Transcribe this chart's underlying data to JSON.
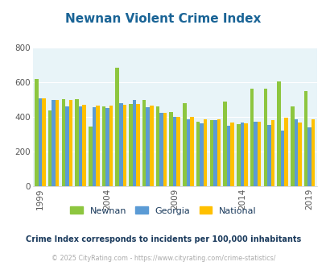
{
  "title": "Newnan Violent Crime Index",
  "title_color": "#1a6496",
  "years": [
    1999,
    2000,
    2001,
    2002,
    2003,
    2004,
    2005,
    2006,
    2007,
    2008,
    2009,
    2010,
    2011,
    2012,
    2013,
    2014,
    2015,
    2016,
    2017,
    2018,
    2019,
    2020
  ],
  "newnan": [
    618,
    440,
    505,
    505,
    345,
    460,
    685,
    475,
    500,
    460,
    430,
    480,
    375,
    380,
    490,
    360,
    565,
    565,
    605,
    460,
    550,
    null
  ],
  "georgia": [
    510,
    500,
    460,
    460,
    455,
    450,
    480,
    500,
    455,
    425,
    400,
    385,
    365,
    380,
    350,
    370,
    375,
    355,
    320,
    385,
    340,
    null
  ],
  "national": [
    510,
    500,
    500,
    470,
    465,
    465,
    470,
    475,
    465,
    425,
    400,
    400,
    387,
    387,
    367,
    365,
    373,
    383,
    395,
    370,
    387,
    null
  ],
  "newnan_color": "#8dc63f",
  "georgia_color": "#5b9bd5",
  "national_color": "#ffc000",
  "bg_color": "#e8f4f8",
  "ylim": [
    0,
    800
  ],
  "yticks": [
    0,
    200,
    400,
    600,
    800
  ],
  "xlabel_years": [
    1999,
    2004,
    2009,
    2014,
    2019
  ],
  "footnote1": "Crime Index corresponds to incidents per 100,000 inhabitants",
  "footnote2": "© 2025 CityRating.com - https://www.cityrating.com/crime-statistics/",
  "footnote1_color": "#1a3a5c",
  "footnote2_color": "#aaaaaa"
}
